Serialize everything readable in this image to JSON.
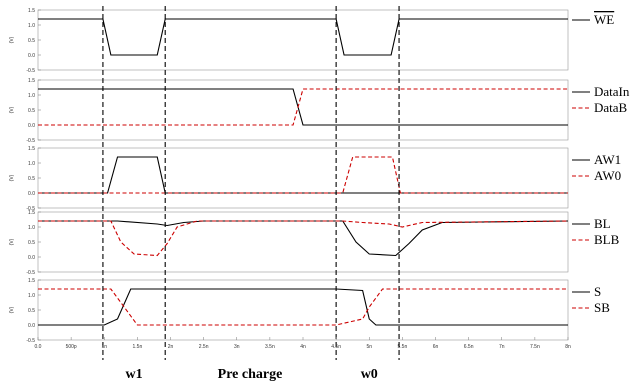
{
  "chart_data": {
    "type": "line",
    "x_unit": "s",
    "x_ticks": [
      {
        "value": 0,
        "label": "0.0"
      },
      {
        "value": 5e-10,
        "label": "500p"
      },
      {
        "value": 1e-09,
        "label": "1n"
      },
      {
        "value": 1.5e-09,
        "label": "1.5n"
      },
      {
        "value": 2e-09,
        "label": "2n"
      },
      {
        "value": 2.5e-09,
        "label": "2.5n"
      },
      {
        "value": 3e-09,
        "label": "3n"
      },
      {
        "value": 3.5e-09,
        "label": "3.5n"
      },
      {
        "value": 4e-09,
        "label": "4n"
      },
      {
        "value": 4.5e-09,
        "label": "4.5n"
      },
      {
        "value": 5e-09,
        "label": "5n"
      },
      {
        "value": 5.5e-09,
        "label": "5.5n"
      },
      {
        "value": 6e-09,
        "label": "6n"
      },
      {
        "value": 6.5e-09,
        "label": "6.5n"
      },
      {
        "value": 7e-09,
        "label": "7n"
      },
      {
        "value": 7.5e-09,
        "label": "7.5n"
      },
      {
        "value": 8e-09,
        "label": "8n"
      }
    ],
    "xlim": [
      0,
      8e-09
    ],
    "y_ticks": [
      "-0.5",
      "0.0",
      "0.5",
      "1.0",
      "1.5"
    ],
    "ylim": [
      -0.5,
      1.5
    ],
    "ylabel": "(V)",
    "markers_x": [
      9.8e-10,
      1.92e-09,
      4.5e-09,
      5.45e-09
    ],
    "phase_labels": [
      {
        "text": "w1",
        "x": 1.45e-09
      },
      {
        "text": "Pre charge",
        "x": 3.2e-09
      },
      {
        "text": "w0",
        "x": 5e-09
      }
    ],
    "panels": [
      {
        "series": [
          {
            "name": "WE",
            "overline": true,
            "style": "solid",
            "color": "#000000",
            "x": [
              0,
              9.8e-10,
              1.1e-09,
              1.8e-09,
              1.92e-09,
              4.5e-09,
              4.62e-09,
              5.33e-09,
              5.45e-09,
              8e-09
            ],
            "y": [
              1.2,
              1.2,
              0.0,
              0.0,
              1.2,
              1.2,
              0.0,
              0.0,
              1.2,
              1.2
            ]
          }
        ]
      },
      {
        "series": [
          {
            "name": "DataIn",
            "style": "solid",
            "color": "#000000",
            "x": [
              0,
              3.85e-09,
              4e-09,
              8e-09
            ],
            "y": [
              1.2,
              1.2,
              0.0,
              0.0
            ]
          },
          {
            "name": "DataB",
            "style": "dashed",
            "color": "#cc0000",
            "x": [
              0,
              3.85e-09,
              4e-09,
              8e-09
            ],
            "y": [
              0.0,
              0.0,
              1.2,
              1.2
            ]
          }
        ]
      },
      {
        "series": [
          {
            "name": "AW1",
            "style": "solid",
            "color": "#000000",
            "x": [
              0,
              1.05e-09,
              1.2e-09,
              1.8e-09,
              1.92e-09,
              8e-09
            ],
            "y": [
              0.0,
              0.0,
              1.2,
              1.2,
              0.0,
              0.0
            ]
          },
          {
            "name": "AW0",
            "style": "dashed",
            "color": "#cc0000",
            "x": [
              0,
              4.6e-09,
              4.75e-09,
              5.35e-09,
              5.47e-09,
              8e-09
            ],
            "y": [
              0.0,
              0.0,
              1.2,
              1.2,
              0.0,
              0.0
            ]
          }
        ]
      },
      {
        "series": [
          {
            "name": "BL",
            "style": "solid",
            "color": "#000000",
            "x": [
              0,
              1.2e-09,
              1.8e-09,
              1.95e-09,
              2.2e-09,
              2.5e-09,
              4.6e-09,
              4.8e-09,
              5e-09,
              5.4e-09,
              5.6e-09,
              5.8e-09,
              6.1e-09,
              8e-09
            ],
            "y": [
              1.2,
              1.2,
              1.1,
              1.05,
              1.15,
              1.2,
              1.2,
              0.5,
              0.1,
              0.05,
              0.45,
              0.9,
              1.15,
              1.2
            ]
          },
          {
            "name": "BLB",
            "style": "dashed",
            "color": "#cc0000",
            "x": [
              0,
              1.1e-09,
              1.25e-09,
              1.45e-09,
              1.8e-09,
              1.95e-09,
              2.1e-09,
              2.4e-09,
              4.6e-09,
              4.9e-09,
              5.3e-09,
              5.5e-09,
              5.8e-09,
              8e-09
            ],
            "y": [
              1.2,
              1.2,
              0.5,
              0.1,
              0.05,
              0.45,
              1.0,
              1.2,
              1.2,
              1.15,
              1.1,
              1.0,
              1.15,
              1.2
            ]
          }
        ]
      },
      {
        "series": [
          {
            "name": "S",
            "style": "solid",
            "color": "#000000",
            "x": [
              0,
              1e-09,
              1.2e-09,
              1.4e-09,
              4.5e-09,
              4.9e-09,
              5e-09,
              5.1e-09,
              8e-09
            ],
            "y": [
              0.0,
              0.0,
              0.2,
              1.2,
              1.2,
              1.15,
              0.2,
              0.0,
              0.0
            ]
          },
          {
            "name": "SB",
            "style": "dashed",
            "color": "#cc0000",
            "x": [
              0,
              1.1e-09,
              1.3e-09,
              1.5e-09,
              4.5e-09,
              4.9e-09,
              5e-09,
              5.2e-09,
              8e-09
            ],
            "y": [
              1.2,
              1.2,
              0.6,
              0.0,
              0.0,
              0.2,
              0.6,
              1.2,
              1.2
            ]
          }
        ]
      }
    ]
  }
}
